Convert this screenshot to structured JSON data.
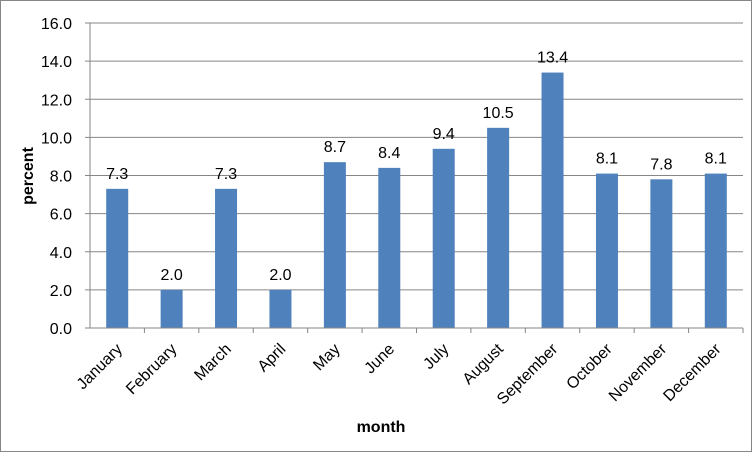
{
  "chart_data": {
    "type": "bar",
    "title": "",
    "xlabel": "month",
    "ylabel": "percent",
    "categories": [
      "January",
      "February",
      "March",
      "April",
      "May",
      "June",
      "July",
      "August",
      "September",
      "October",
      "November",
      "December"
    ],
    "values": [
      7.3,
      2.0,
      7.3,
      2.0,
      8.7,
      8.4,
      9.4,
      10.5,
      13.4,
      8.1,
      7.8,
      8.1
    ],
    "data_labels": [
      "7.3",
      "2.0",
      "7.3",
      "2.0",
      "8.7",
      "8.4",
      "9.4",
      "10.5",
      "13.4",
      "8.1",
      "7.8",
      "8.1"
    ],
    "ylim": [
      0,
      16
    ],
    "yticks": [
      "0.0",
      "2.0",
      "4.0",
      "6.0",
      "8.0",
      "10.0",
      "12.0",
      "14.0",
      "16.0"
    ],
    "grid": true,
    "legend": "none",
    "bar_color": "#4F81BD",
    "grid_color": "#868686"
  }
}
